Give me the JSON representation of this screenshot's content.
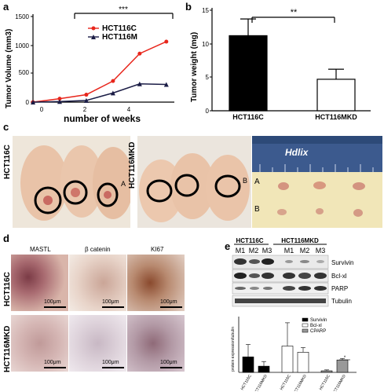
{
  "panels": {
    "a": "a",
    "b": "b",
    "c": "c",
    "d": "d",
    "e": "e"
  },
  "panel_a": {
    "ylabel": "Tumor Volume (mm3)",
    "xlabel": "number of weeks",
    "yticks": [
      "0",
      "500",
      "1000",
      "1500"
    ],
    "xticks": [
      "0",
      "2",
      "4"
    ],
    "legend": [
      "HCT116C",
      "HCT116M"
    ],
    "significance": "***"
  },
  "panel_b": {
    "ylabel": "Tumor weight (mg)",
    "yticks": [
      "0",
      "5",
      "10",
      "15"
    ],
    "categories": [
      "HCT116C",
      "HCT116MKD"
    ],
    "significance": "**"
  },
  "panel_c": {
    "left_label": "HCT116C",
    "mid_label": "HCT116MKD",
    "left_marker": "A",
    "mid_marker": "B",
    "ruler_text": "Hdlix",
    "tray_row_a": "A",
    "tray_row_b": "B"
  },
  "panel_d": {
    "columns": [
      "MASTL",
      "β catenin",
      "KI67"
    ],
    "rows": [
      "HCT116C",
      "HCT116MKD"
    ],
    "scale_bar": "100μm"
  },
  "panel_e": {
    "groups": [
      "HCT116C",
      "HCT116MKD"
    ],
    "lanes": [
      "M1",
      "M2",
      "M3",
      "M1",
      "M2",
      "M3"
    ],
    "bands": [
      "Survivin",
      "Bcl-xl",
      "PARP",
      "Tubulin"
    ],
    "ylabel": "protein expression/tubulin",
    "legend": [
      "Survivin",
      "Bcl-xl",
      "CPARP"
    ],
    "xticks": [
      "HCT116C",
      "HCT116MKD",
      "HCT116C",
      "HCT116MKD",
      "HCT116C",
      "HCT116MKD"
    ],
    "significance": "*"
  },
  "chart_data": [
    {
      "type": "line",
      "x": [
        0,
        1,
        2,
        3,
        4,
        5
      ],
      "series": [
        {
          "name": "HCT116C",
          "values": [
            0,
            60,
            130,
            370,
            850,
            1060
          ]
        },
        {
          "name": "HCT116M",
          "values": [
            0,
            10,
            30,
            160,
            320,
            310
          ]
        }
      ],
      "xlabel": "number of weeks",
      "ylabel": "Tumor Volume (mm3)",
      "xlim": [
        0,
        5.3
      ],
      "ylim": [
        0,
        1500
      ],
      "colors": [
        "#e8261c",
        "#1b1d46"
      ]
    },
    {
      "type": "bar",
      "categories": [
        "HCT116C",
        "HCT116MKD"
      ],
      "values": [
        11.2,
        4.7
      ],
      "errors": [
        2.5,
        1.5
      ],
      "ylabel": "Tumor weight (mg)",
      "ylim": [
        0,
        15
      ]
    },
    {
      "type": "bar",
      "categories": [
        "HCT116C",
        "HCT116MKD",
        "HCT116C",
        "HCT116MKD",
        "HCT116C",
        "HCT116MKD"
      ],
      "values": [
        0.5,
        0.2,
        0.85,
        0.65,
        0.05,
        0.4
      ],
      "errors": [
        0.4,
        0.15,
        0.75,
        0.15,
        0.03,
        0.05
      ],
      "fills": [
        "#000000",
        "#000000",
        "#ffffff",
        "#ffffff",
        "#999999",
        "#999999"
      ],
      "ylim": [
        0,
        1.8
      ]
    }
  ]
}
